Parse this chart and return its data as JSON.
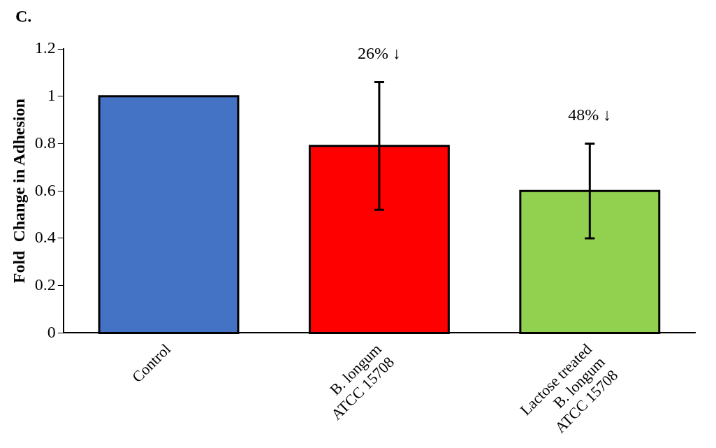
{
  "chart_data": {
    "type": "bar",
    "title": "C.",
    "ylabel": "Fold  Change in Adhesion",
    "categories": [
      "Control",
      "B. longum\nATCC 15708",
      "Lactose treated\nB. longum\nATCC 15708"
    ],
    "values": [
      1.0,
      0.79,
      0.6
    ],
    "colors": [
      "#4472c4",
      "#ff0000",
      "#92d050"
    ],
    "errors": [
      null,
      0.27,
      0.2
    ],
    "ylim": [
      0,
      1.2
    ],
    "yticks": [
      0,
      0.2,
      0.4,
      0.6,
      0.8,
      1,
      1.2
    ],
    "grid": false,
    "legend": false,
    "annotations": [
      "26% ↓",
      "48% ↓"
    ]
  }
}
